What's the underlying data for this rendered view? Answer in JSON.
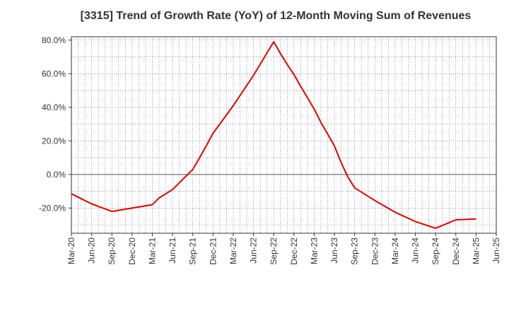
{
  "chart_data": {
    "type": "line",
    "title": "[3315]  Trend of Growth Rate (YoY) of 12-Month Moving Sum of Revenues",
    "xlabel": "",
    "ylabel": "",
    "x_ticks": [
      "Mar-20",
      "Jun-20",
      "Sep-20",
      "Dec-20",
      "Mar-21",
      "Jun-21",
      "Sep-21",
      "Dec-21",
      "Mar-22",
      "Jun-22",
      "Sep-22",
      "Dec-22",
      "Mar-23",
      "Jun-23",
      "Sep-23",
      "Dec-23",
      "Mar-24",
      "Jun-24",
      "Sep-24",
      "Dec-24",
      "Mar-25",
      "Jun-25"
    ],
    "y_ticks": [
      "-20.0%",
      "0.0%",
      "20.0%",
      "40.0%",
      "60.0%",
      "80.0%"
    ],
    "y_tick_values": [
      -20,
      0,
      20,
      40,
      60,
      80
    ],
    "ylim": [
      -35,
      82
    ],
    "grid": true,
    "series": [
      {
        "color": "#e00000",
        "points": [
          {
            "x": "Mar-20",
            "y": -11.5
          },
          {
            "x": "Jun-20",
            "y": -17.5
          },
          {
            "x": "Sep-20",
            "y": -22.0
          },
          {
            "x": "Dec-20",
            "y": -20.0
          },
          {
            "x": "Mar-21",
            "y": -18.0
          },
          {
            "x": "Apr-21",
            "y": -14.0
          },
          {
            "x": "Jun-21",
            "y": -9.0
          },
          {
            "x": "Jul-21",
            "y": -5.0
          },
          {
            "x": "Sep-21",
            "y": 3.0
          },
          {
            "x": "Oct-21",
            "y": 10.0
          },
          {
            "x": "Nov-21",
            "y": 17.0
          },
          {
            "x": "Dec-21",
            "y": 24.5
          },
          {
            "x": "Jan-22",
            "y": 30.0
          },
          {
            "x": "Mar-22",
            "y": 41.0
          },
          {
            "x": "Jun-22",
            "y": 59.0
          },
          {
            "x": "Sep-22",
            "y": 79.0
          },
          {
            "x": "Oct-22",
            "y": 72.0
          },
          {
            "x": "Nov-22",
            "y": 65.5
          },
          {
            "x": "Dec-22",
            "y": 59.5
          },
          {
            "x": "Jan-23",
            "y": 52.5
          },
          {
            "x": "Mar-23",
            "y": 39.0
          },
          {
            "x": "Apr-23",
            "y": 31.0
          },
          {
            "x": "May-23",
            "y": 24.0
          },
          {
            "x": "Jun-23",
            "y": 17.0
          },
          {
            "x": "Jul-23",
            "y": 7.0
          },
          {
            "x": "Aug-23",
            "y": -1.5
          },
          {
            "x": "Sep-23",
            "y": -8.0
          },
          {
            "x": "Dec-23",
            "y": -15.5
          },
          {
            "x": "Mar-24",
            "y": -22.5
          },
          {
            "x": "Jun-24",
            "y": -28.0
          },
          {
            "x": "Sep-24",
            "y": -32.0
          },
          {
            "x": "Dec-24",
            "y": -27.0
          },
          {
            "x": "Mar-25",
            "y": -26.5
          }
        ]
      }
    ]
  }
}
